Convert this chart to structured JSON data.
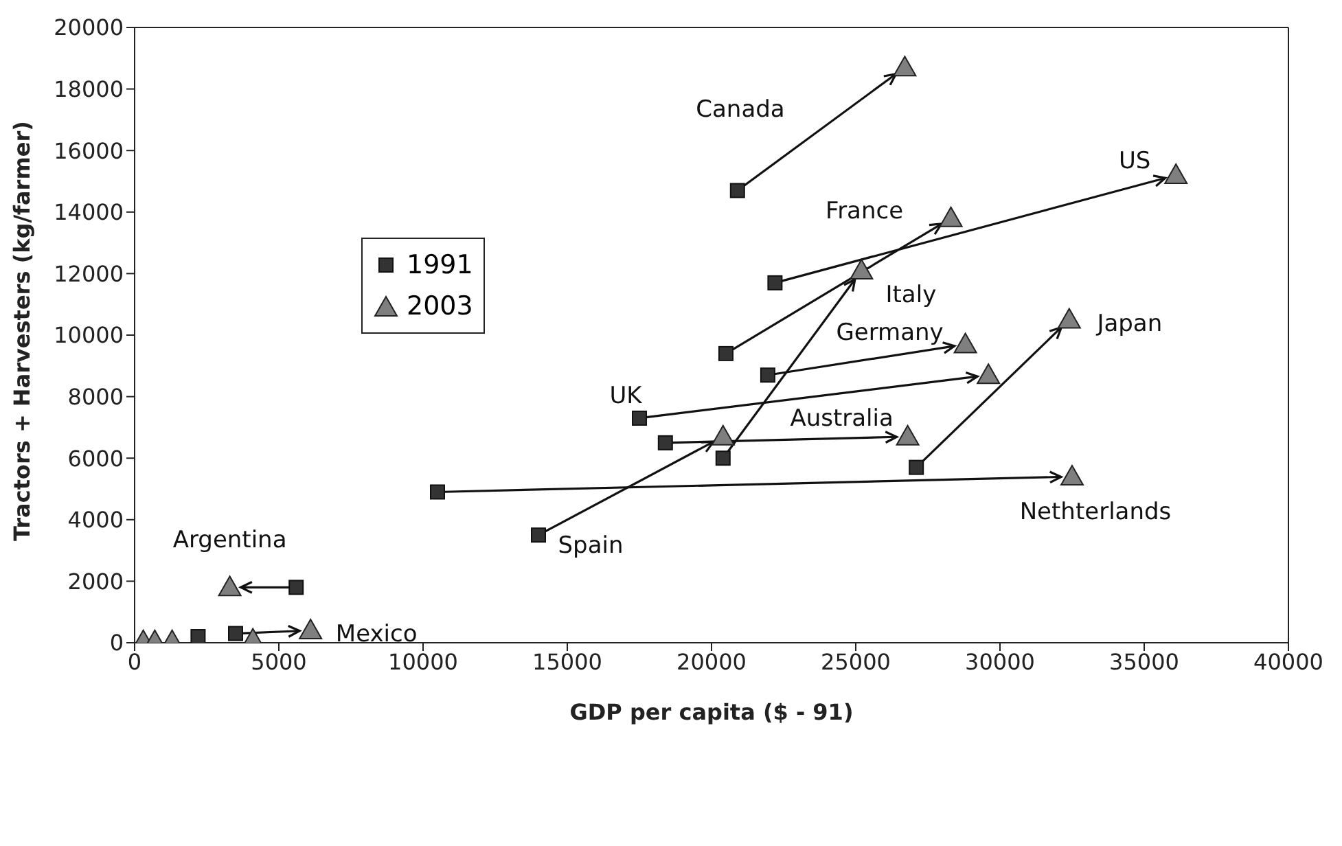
{
  "chart_data": {
    "type": "scatter",
    "xlabel": "GDP per capita ($ - 91)",
    "ylabel": "Tractors + Harvesters (kg/farmer)",
    "xlim": [
      0,
      40000
    ],
    "xticks": [
      0,
      5000,
      10000,
      15000,
      20000,
      25000,
      30000,
      35000,
      40000
    ],
    "ylim": [
      0,
      20000
    ],
    "yticks": [
      0,
      2000,
      4000,
      6000,
      8000,
      10000,
      12000,
      14000,
      16000,
      18000,
      20000
    ],
    "grid": false,
    "legend": "left",
    "series": [
      {
        "name": "1991",
        "color": "#333333",
        "marker": "square",
        "x": [
          20900,
          22200,
          20500,
          21950,
          17500,
          18400,
          20400,
          27100,
          10500,
          14000,
          5600,
          3500,
          2200,
          null,
          null,
          null,
          null
        ],
        "values": [
          14700,
          11700,
          9400,
          8700,
          7300,
          6500,
          6000,
          5700,
          4900,
          3500,
          1800,
          300,
          200,
          null,
          null,
          null,
          null
        ]
      },
      {
        "name": "2003",
        "color": "#7f7f7f",
        "marker": "triangle",
        "x": [
          26700,
          36100,
          28300,
          28800,
          29600,
          26800,
          25200,
          32400,
          32500,
          20400,
          3300,
          6100,
          null,
          4100,
          300,
          700,
          1300
        ],
        "values": [
          18700,
          15200,
          13800,
          9700,
          8700,
          6700,
          12100,
          10500,
          5400,
          6700,
          1800,
          400,
          null,
          100,
          50,
          50,
          50
        ]
      }
    ],
    "annotations": [
      "Canada",
      {
        "text": "US",
        "x": 36100,
        "y": 15200
      },
      {
        "text": "France",
        "x": 28300,
        "y": 13800
      },
      {
        "text": "Italy",
        "x": 25200,
        "y": 12100
      },
      {
        "text": "Germany",
        "x": 28800,
        "y": 9700
      },
      {
        "text": "Japan",
        "x": 32400,
        "y": 10500
      },
      {
        "text": "UK",
        "x": 17500,
        "y": 7300
      },
      {
        "text": "Australia",
        "x": 26800,
        "y": 6700
      },
      {
        "text": "Nethterlands",
        "x": 32500,
        "y": 5400
      },
      {
        "text": "Spain",
        "x": 14000,
        "y": 3500
      },
      {
        "text": "Argentina",
        "x": 3300,
        "y": 1800
      },
      {
        "text": "Mexico",
        "x": 6100,
        "y": 400
      }
    ]
  }
}
